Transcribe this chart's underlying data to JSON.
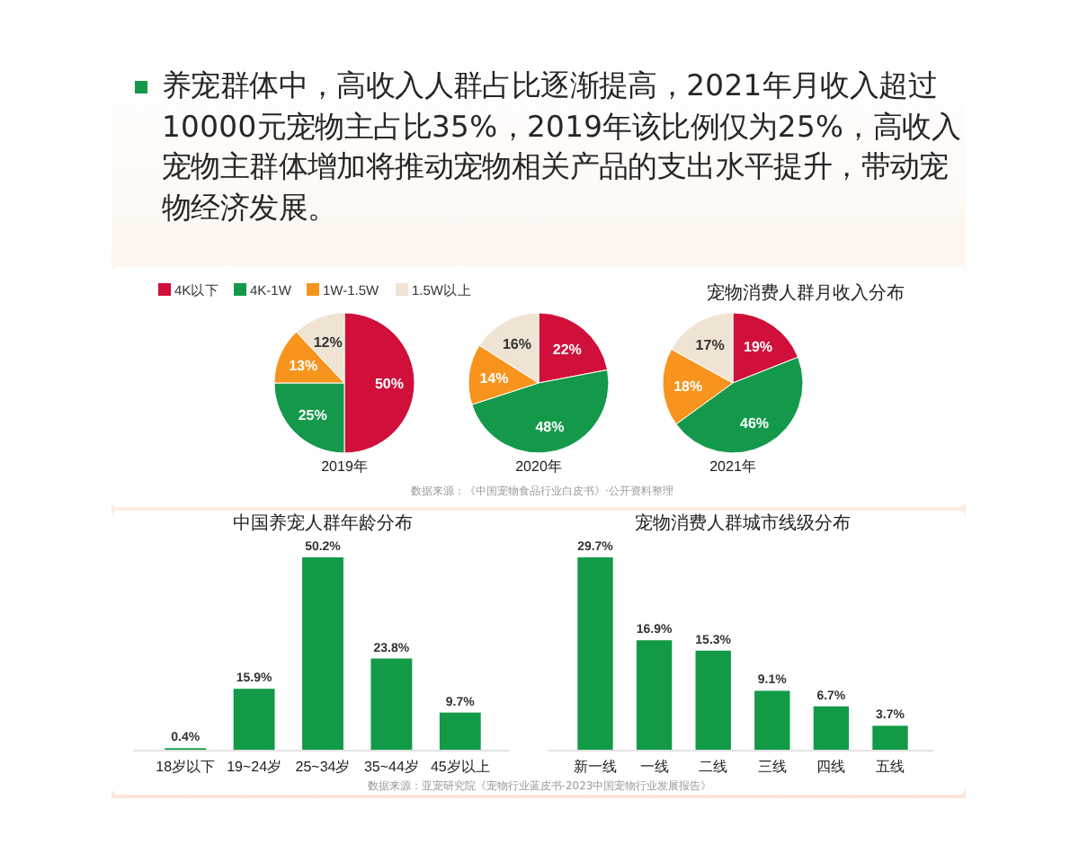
{
  "chart_data": [
    {
      "type": "other",
      "annotations": [
        "养宠群体中，高收入人群占比逐渐提高，2021年月收入超过10000元宠物主占比35%，2019年该比例仅为25%，高收入宠物主群体增加将推动宠物相关产品的支出水平提升，带动宠物经济发展。"
      ]
    },
    {
      "type": "pie",
      "title": "宠物消费人群月收入分布",
      "categories": [
        "4K以下",
        "4K-1W",
        "1W-1.5W",
        "1.5W以上"
      ],
      "colors": [
        "#d0103a",
        "#14994a",
        "#f7941d",
        "#efe3d3"
      ],
      "series": [
        {
          "name": "2019年",
          "values": [
            50,
            25,
            13,
            12
          ],
          "value_labels": [
            "50%",
            "25%",
            "13%",
            "12%"
          ]
        },
        {
          "name": "2020年",
          "values": [
            22,
            48,
            14,
            16
          ],
          "value_labels": [
            "22%",
            "48%",
            "14%",
            "16%"
          ]
        },
        {
          "name": "2021年",
          "values": [
            19,
            46,
            18,
            17
          ],
          "value_labels": [
            "19%",
            "46%",
            "18%",
            "17%"
          ]
        }
      ],
      "legend": "top left",
      "annotations": [
        "数据来源：《中国宠物食品行业白皮书》·公开资料整理"
      ]
    },
    {
      "type": "bar",
      "title": "中国养宠人群年龄分布",
      "categories": [
        "18岁以下",
        "19~24岁",
        "25~34岁",
        "35~44岁",
        "45岁以上"
      ],
      "values": [
        0.4,
        15.9,
        50.2,
        23.8,
        9.7
      ],
      "value_labels": [
        "0.4%",
        "15.9%",
        "50.2%",
        "23.8%",
        "9.7%"
      ],
      "color": "#129a46",
      "tick_labels": "x",
      "annotations": [
        "数据来源：亚宠研究院《宠物行业蓝皮书-2023中国宠物行业发展报告》"
      ]
    },
    {
      "type": "bar",
      "title": "宠物消费人群城市线级分布",
      "categories": [
        "新一线",
        "一线",
        "二线",
        "三线",
        "四线",
        "五线"
      ],
      "values": [
        29.7,
        16.9,
        15.3,
        9.1,
        6.7,
        3.7
      ],
      "value_labels": [
        "29.7%",
        "16.9%",
        "15.3%",
        "9.1%",
        "6.7%",
        "3.7%"
      ],
      "color": "#129a46",
      "tick_labels": "x"
    }
  ]
}
